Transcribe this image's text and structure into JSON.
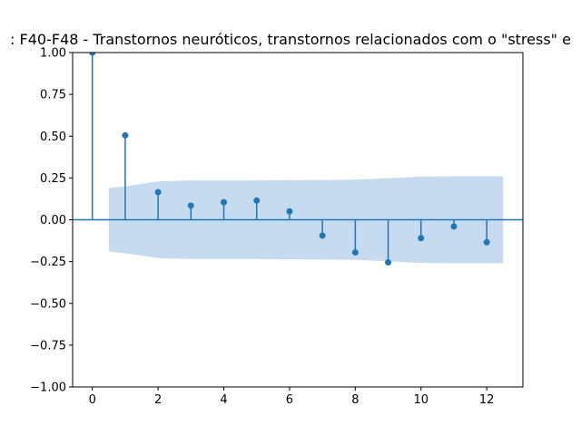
{
  "chart_data": {
    "type": "stem",
    "title": ": F40-F48 - Transtornos neuróticos, transtornos relacionados com o \"stress\" e",
    "xlabel": "",
    "ylabel": "",
    "xlim": [
      -0.6,
      13.1
    ],
    "ylim": [
      -1.0,
      1.0
    ],
    "xticks": [
      0,
      2,
      4,
      6,
      8,
      10,
      12
    ],
    "xtick_labels": [
      "0",
      "2",
      "4",
      "6",
      "8",
      "10",
      "12"
    ],
    "yticks": [
      -1.0,
      -0.75,
      -0.5,
      -0.25,
      0.0,
      0.25,
      0.5,
      0.75,
      1.0
    ],
    "ytick_labels": [
      "−1.00",
      "−0.75",
      "−0.50",
      "−0.25",
      "0.00",
      "0.25",
      "0.50",
      "0.75",
      "1.00"
    ],
    "x": [
      0,
      1,
      2,
      3,
      4,
      5,
      6,
      7,
      8,
      9,
      10,
      11,
      12
    ],
    "values": [
      1.0,
      0.505,
      0.165,
      0.085,
      0.105,
      0.115,
      0.05,
      -0.095,
      -0.195,
      -0.255,
      -0.11,
      -0.04,
      -0.135
    ],
    "confidence_band": {
      "x": [
        0.5,
        1,
        2,
        3,
        4,
        5,
        6,
        7,
        8,
        9,
        10,
        11,
        12,
        12.5
      ],
      "upper": [
        0.19,
        0.2,
        0.23,
        0.235,
        0.235,
        0.235,
        0.237,
        0.238,
        0.24,
        0.248,
        0.258,
        0.26,
        0.26,
        0.26
      ],
      "lower": [
        -0.19,
        -0.2,
        -0.23,
        -0.235,
        -0.235,
        -0.235,
        -0.237,
        -0.238,
        -0.24,
        -0.248,
        -0.258,
        -0.26,
        -0.26,
        -0.26
      ]
    },
    "grid": false,
    "colors": {
      "stem": "#1f77b4",
      "band": "#c6dbef",
      "zero_line": "#1f77b4"
    }
  }
}
